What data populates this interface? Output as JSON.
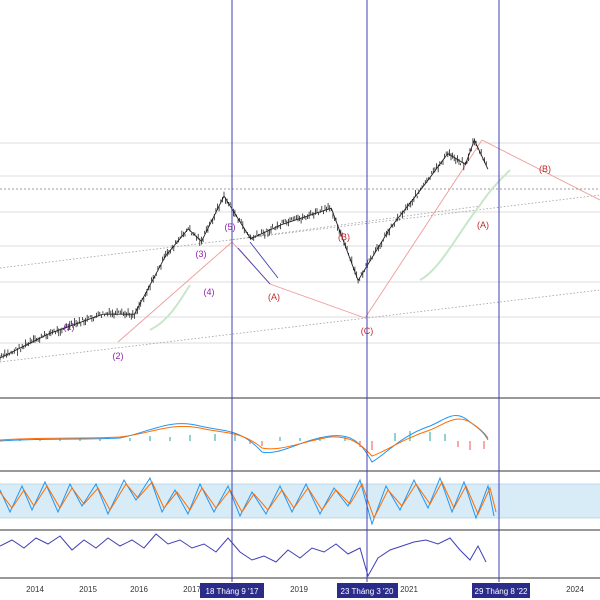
{
  "colors": {
    "candle": "#222222",
    "purple_label": "#8e24aa",
    "red_label": "#c62828",
    "vline": "#3f3fb5",
    "badge_bg": "#2b2b8a",
    "trend": "#e57373",
    "channel": "#9e9e9e",
    "grid": "#e0e0e0",
    "macd_line": "#2196f3",
    "signal_line": "#ff6d00",
    "hist_pos": "#26a69a",
    "hist_neg": "#ef5350",
    "stoch_k": "#2196f3",
    "stoch_d": "#ff6d00",
    "stoch_band": "#d8ecf8",
    "rsi_line": "#3f3fb5"
  },
  "x_axis": {
    "ticks": [
      "2014",
      "2015",
      "2016",
      "2017",
      "2019",
      "2021",
      "2024"
    ]
  },
  "date_badges": [
    "18 Tháng 9 '17",
    "23 Tháng 3 '20",
    "29 Tháng 8 '22"
  ],
  "wave_labels": [
    {
      "text": "(1)",
      "kind": "purple"
    },
    {
      "text": "(2)",
      "kind": "purple"
    },
    {
      "text": "(3)",
      "kind": "purple"
    },
    {
      "text": "(4)",
      "kind": "purple"
    },
    {
      "text": "(5)",
      "kind": "purple"
    },
    {
      "text": "(A)",
      "kind": "red"
    },
    {
      "text": "(B)",
      "kind": "red"
    },
    {
      "text": "(C)",
      "kind": "red"
    },
    {
      "text": "(A)",
      "kind": "red"
    },
    {
      "text": "(B)",
      "kind": "red"
    }
  ],
  "chart_data": {
    "type": "line",
    "panes": [
      "price",
      "macd",
      "stochastic",
      "rsi"
    ],
    "price_series": [
      {
        "date": "2013-07",
        "price": 1.0
      },
      {
        "date": "2014-06",
        "price": 1.3
      },
      {
        "date": "2015-06",
        "price": 1.6
      },
      {
        "date": "2016-01",
        "price": 1.6
      },
      {
        "date": "2016-08",
        "price": 3.0
      },
      {
        "date": "2017-01",
        "price": 4.0
      },
      {
        "date": "2017-04",
        "price": 3.5
      },
      {
        "date": "2017-09",
        "price": 5.7
      },
      {
        "date": "2018-03",
        "price": 3.6
      },
      {
        "date": "2018-10",
        "price": 4.2
      },
      {
        "date": "2019-09",
        "price": 5.0
      },
      {
        "date": "2020-03",
        "price": 2.3
      },
      {
        "date": "2020-10",
        "price": 4.0
      },
      {
        "date": "2021-06",
        "price": 6.5
      },
      {
        "date": "2021-11",
        "price": 9.0
      },
      {
        "date": "2022-03",
        "price": 8.0
      },
      {
        "date": "2022-05",
        "price": 10.4
      },
      {
        "date": "2022-08",
        "price": 7.6
      }
    ]
  }
}
